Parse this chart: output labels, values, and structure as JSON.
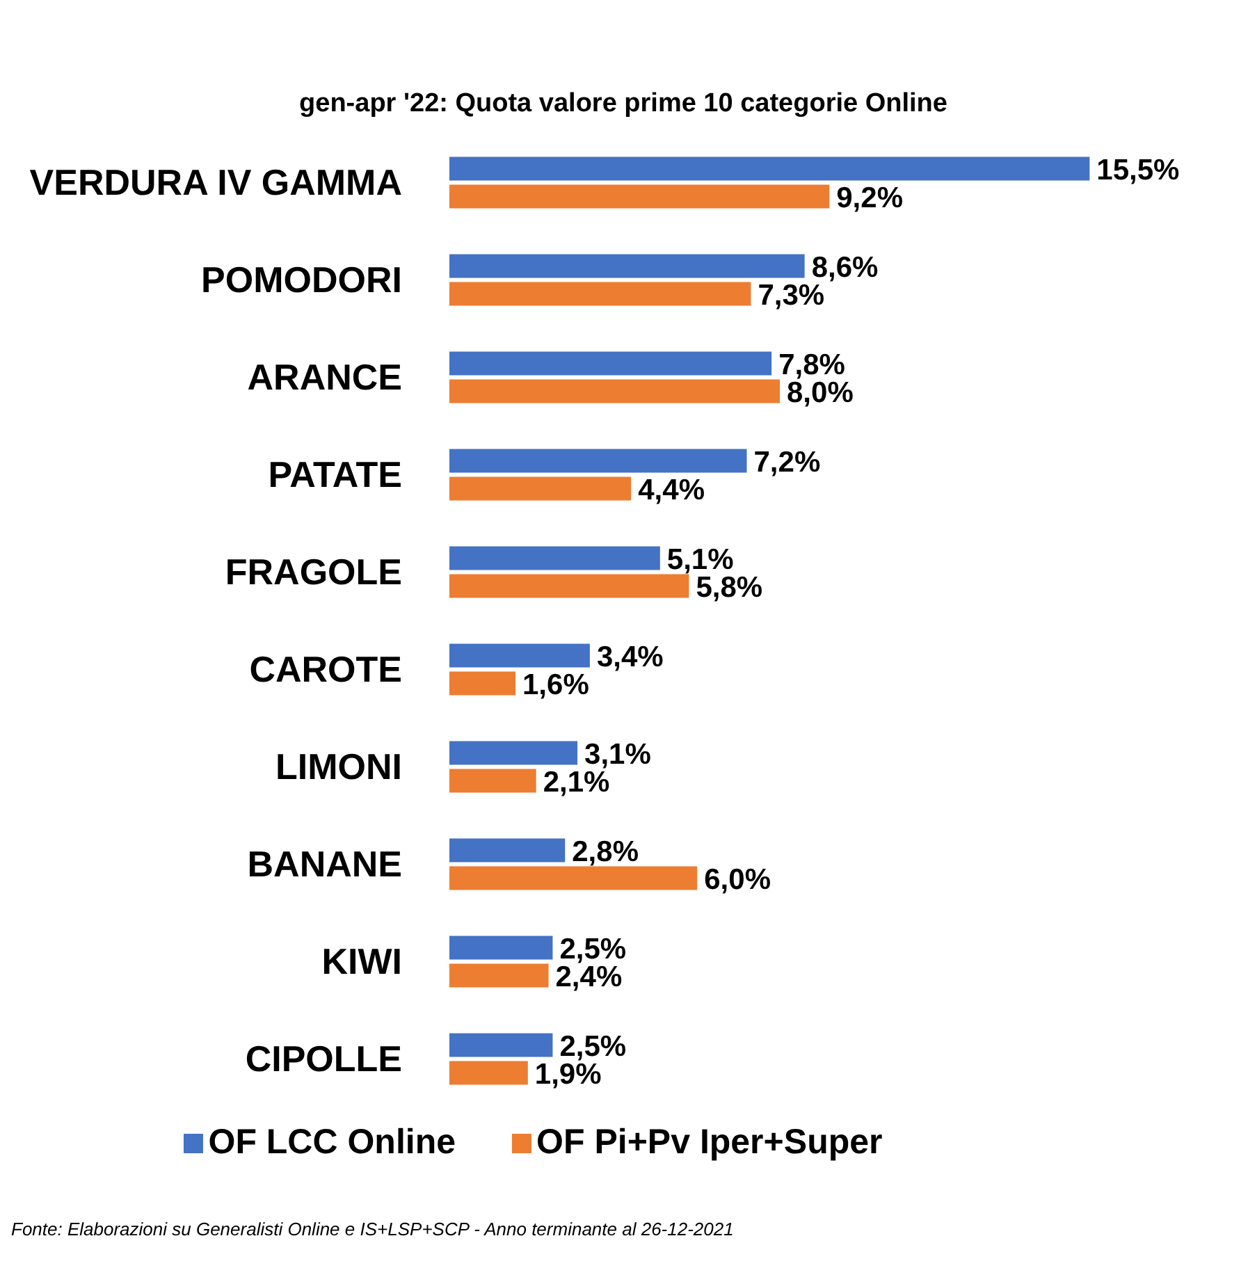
{
  "chart_data": {
    "type": "bar",
    "orientation": "horizontal",
    "title": "gen-apr '22: Quota valore prime 10 categorie Online",
    "categories": [
      "VERDURA IV GAMMA",
      "POMODORI",
      "ARANCE",
      "PATATE",
      "FRAGOLE",
      "CAROTE",
      "LIMONI",
      "BANANE",
      "KIWI",
      "CIPOLLE"
    ],
    "series": [
      {
        "name": "OF LCC Online",
        "color": "#4472c4",
        "values": [
          15.5,
          8.6,
          7.8,
          7.2,
          5.1,
          3.4,
          3.1,
          2.8,
          2.5,
          2.5
        ],
        "value_labels": [
          "15,5%",
          "8,6%",
          "7,8%",
          "7,2%",
          "5,1%",
          "3,4%",
          "3,1%",
          "2,8%",
          "2,5%",
          "2,5%"
        ]
      },
      {
        "name": "OF Pi+Pv Iper+Super",
        "color": "#ed7d31",
        "values": [
          9.2,
          7.3,
          8.0,
          4.4,
          5.8,
          1.6,
          2.1,
          6.0,
          2.4,
          1.9
        ],
        "value_labels": [
          "9,2%",
          "7,3%",
          "8,0%",
          "4,4%",
          "5,8%",
          "1,6%",
          "2,1%",
          "6,0%",
          "2,4%",
          "1,9%"
        ]
      }
    ],
    "tick_labels": "y",
    "legend": "bottom",
    "annotations": [
      "Fonte: Elaborazioni su Generalisti Online e IS+LSP+SCP - Anno terminante al 26-12-2021"
    ]
  }
}
